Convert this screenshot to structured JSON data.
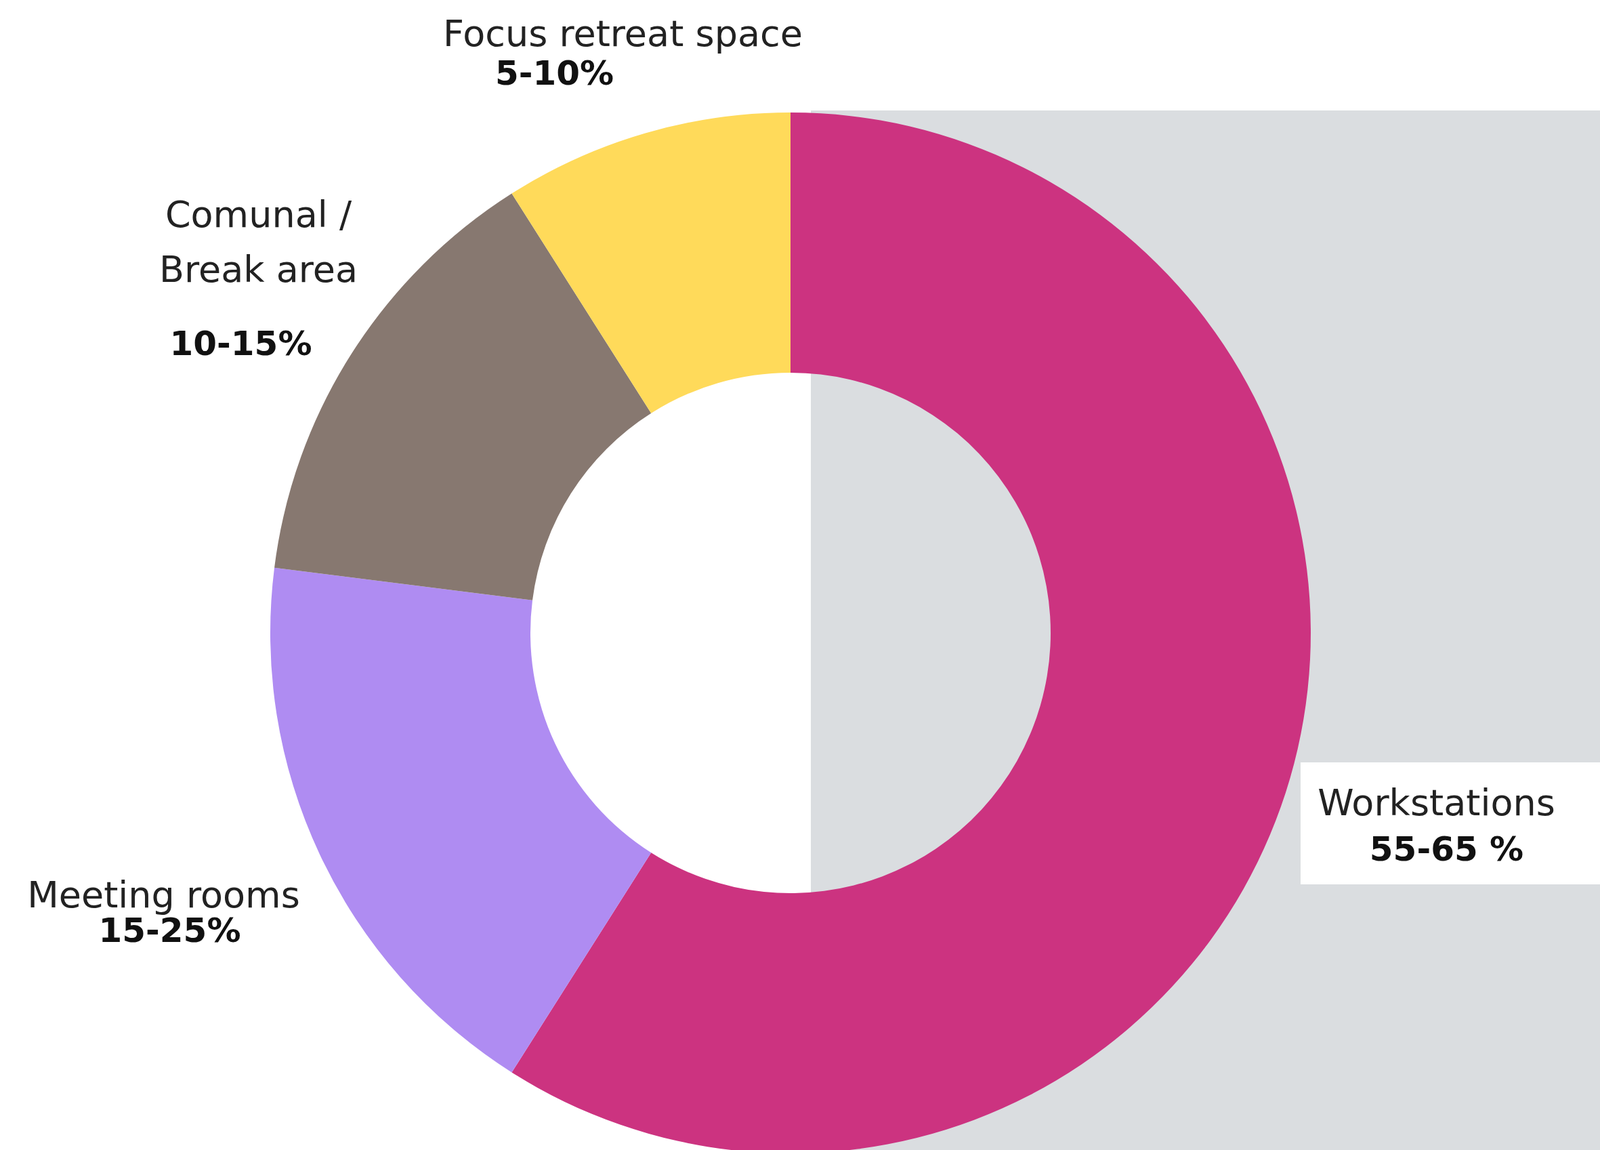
{
  "chart_data": {
    "type": "pie",
    "categories": [
      "Workstations",
      "Meeting rooms",
      "Comunal / Break area",
      "Focus retreat space"
    ],
    "values": [
      59,
      18,
      14,
      9
    ],
    "value_labels": [
      "55-65 %",
      "15-25%",
      "10-15%",
      "5-10%"
    ],
    "colors": [
      "#cc3380",
      "#af8cf2",
      "#877870",
      "#ffda5a"
    ],
    "data_labels": true
  }
}
